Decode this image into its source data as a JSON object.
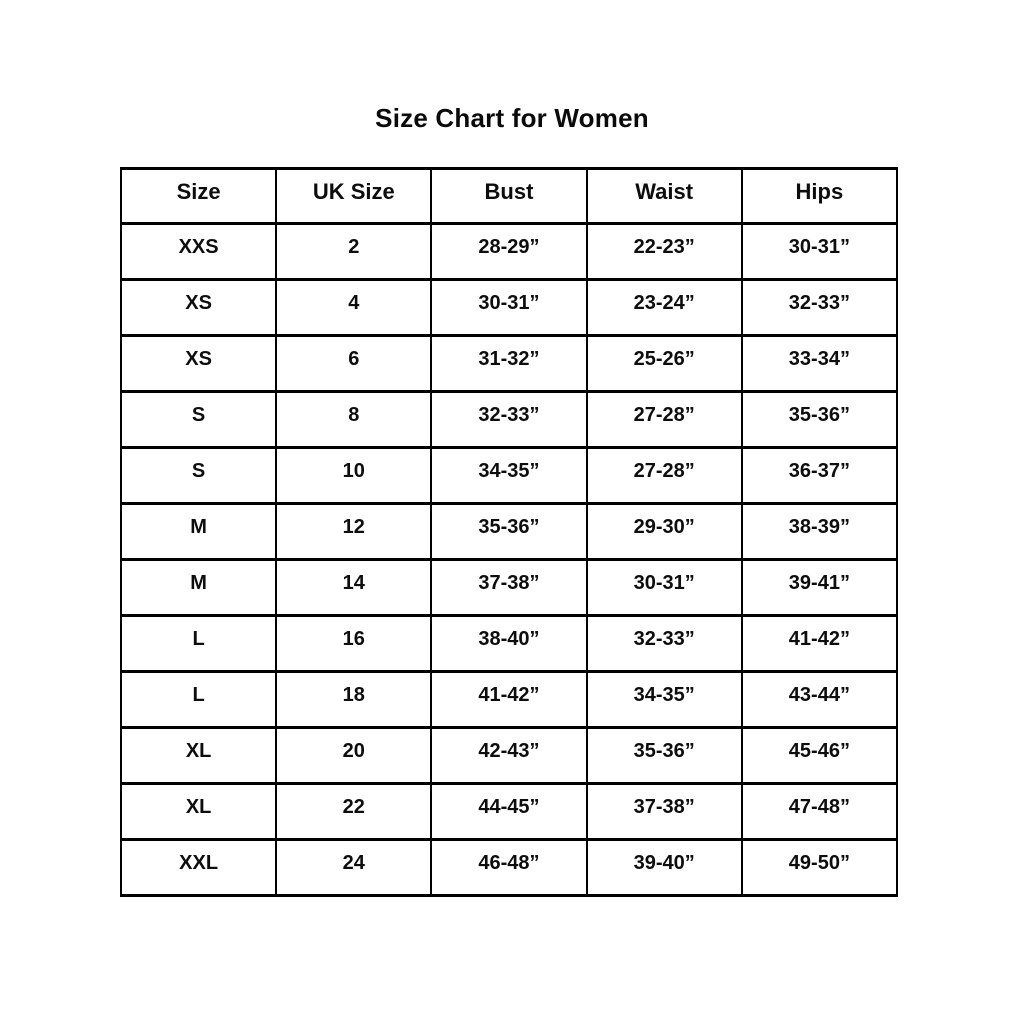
{
  "title": "Size Chart for Women",
  "chart_data": {
    "type": "table",
    "title": "Size Chart for Women",
    "columns": [
      "Size",
      "UK Size",
      "Bust",
      "Waist",
      "Hips"
    ],
    "rows": [
      [
        "XXS",
        "2",
        "28-29”",
        "22-23”",
        "30-31”"
      ],
      [
        "XS",
        "4",
        "30-31”",
        "23-24”",
        "32-33”"
      ],
      [
        "XS",
        "6",
        "31-32”",
        "25-26”",
        "33-34”"
      ],
      [
        "S",
        "8",
        "32-33”",
        "27-28”",
        "35-36”"
      ],
      [
        "S",
        "10",
        "34-35”",
        "27-28”",
        "36-37”"
      ],
      [
        "M",
        "12",
        "35-36”",
        "29-30”",
        "38-39”"
      ],
      [
        "M",
        "14",
        "37-38”",
        "30-31”",
        "39-41”"
      ],
      [
        "L",
        "16",
        "38-40”",
        "32-33”",
        "41-42”"
      ],
      [
        "L",
        "18",
        "41-42”",
        "34-35”",
        "43-44”"
      ],
      [
        "XL",
        "20",
        "42-43”",
        "35-36”",
        "45-46”"
      ],
      [
        "XL",
        "22",
        "44-45”",
        "37-38”",
        "47-48”"
      ],
      [
        "XXL",
        "24",
        "46-48”",
        "39-40”",
        "49-50”"
      ]
    ],
    "layout": {
      "grid": "on",
      "border_color": "#000000",
      "background": "#ffffff",
      "text_color": "#0d0d0d"
    }
  }
}
